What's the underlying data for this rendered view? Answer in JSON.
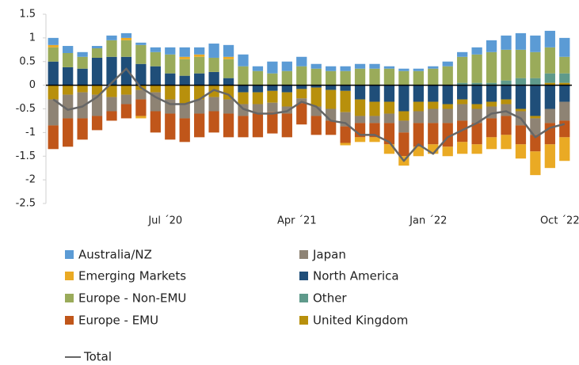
{
  "chart_data": {
    "type": "bar",
    "categories": [
      null,
      null,
      null,
      null,
      null,
      null,
      null,
      null,
      "Jul ´20",
      null,
      null,
      null,
      null,
      null,
      null,
      null,
      null,
      "Apr ´21",
      null,
      null,
      null,
      null,
      null,
      null,
      null,
      null,
      "Jan ´22",
      null,
      null,
      null,
      null,
      null,
      null,
      null,
      null,
      "Oct ´22"
    ],
    "series": [
      {
        "name": "Australia/NZ",
        "color": "#5b9bd5",
        "values": [
          0.15,
          0.15,
          0.1,
          0.05,
          0.1,
          0.1,
          0.05,
          0.1,
          0.15,
          0.2,
          0.15,
          0.3,
          0.25,
          0.25,
          0.1,
          0.25,
          0.2,
          0.2,
          0.1,
          0.1,
          0.1,
          0.1,
          0.1,
          0.05,
          0.05,
          0.05,
          0.05,
          0.1,
          0.1,
          0.15,
          0.25,
          0.3,
          0.35,
          0.35,
          0.35,
          0.4
        ]
      },
      {
        "name": "Emerging Markets",
        "color": "#eaaa24",
        "values": [
          0.05,
          0,
          0,
          0,
          0,
          0.05,
          -0.05,
          0,
          0,
          0.05,
          0.05,
          0,
          0.05,
          0,
          0,
          0,
          0,
          0,
          0,
          0,
          -0.05,
          -0.1,
          -0.1,
          -0.2,
          -0.2,
          -0.2,
          -0.2,
          -0.2,
          -0.25,
          -0.2,
          -0.25,
          -0.3,
          -0.3,
          -0.5,
          -0.5,
          -0.5
        ]
      },
      {
        "name": "Europe - Non-EMU",
        "color": "#9aab5a",
        "values": [
          0.3,
          0.3,
          0.25,
          0.2,
          0.35,
          0.35,
          0.4,
          0.3,
          0.4,
          0.35,
          0.35,
          0.3,
          0.4,
          0.4,
          0.3,
          0.25,
          0.3,
          0.4,
          0.35,
          0.3,
          0.3,
          0.35,
          0.35,
          0.35,
          0.3,
          0.3,
          0.35,
          0.4,
          0.55,
          0.6,
          0.65,
          0.65,
          0.6,
          0.55,
          0.55,
          0.35
        ]
      },
      {
        "name": "Europe - EMU",
        "color": "#c0561a",
        "values": [
          -0.5,
          -0.6,
          -0.45,
          -0.3,
          -0.2,
          -0.3,
          -0.35,
          -0.45,
          -0.55,
          -0.5,
          -0.5,
          -0.45,
          -0.5,
          -0.45,
          -0.5,
          -0.45,
          -0.5,
          -0.45,
          -0.4,
          -0.3,
          -0.35,
          -0.3,
          -0.3,
          -0.45,
          -0.5,
          -0.5,
          -0.45,
          -0.5,
          -0.45,
          -0.45,
          -0.4,
          -0.4,
          -0.4,
          -0.35,
          -0.45,
          -0.35
        ]
      },
      {
        "name": "Japan",
        "color": "#8e8374",
        "values": [
          -0.55,
          -0.5,
          -0.55,
          -0.45,
          -0.3,
          -0.2,
          -0.2,
          -0.4,
          -0.3,
          -0.3,
          -0.3,
          -0.3,
          -0.3,
          -0.25,
          -0.2,
          -0.2,
          -0.15,
          -0.1,
          -0.2,
          -0.25,
          -0.3,
          -0.15,
          -0.15,
          -0.2,
          -0.25,
          -0.25,
          -0.3,
          -0.3,
          -0.35,
          -0.3,
          -0.25,
          -0.25,
          -0.3,
          -0.35,
          -0.3,
          -0.4
        ]
      },
      {
        "name": "North America",
        "color": "#1f4e79",
        "values": [
          0.5,
          0.38,
          0.35,
          0.58,
          0.6,
          0.6,
          0.45,
          0.4,
          0.25,
          0.2,
          0.25,
          0.28,
          0.15,
          -0.15,
          -0.15,
          -0.12,
          -0.15,
          -0.08,
          -0.05,
          -0.1,
          -0.12,
          -0.3,
          -0.35,
          -0.35,
          -0.55,
          -0.35,
          -0.35,
          -0.4,
          -0.3,
          -0.4,
          -0.35,
          -0.3,
          -0.5,
          -0.65,
          -0.5,
          -0.35
        ]
      },
      {
        "name": "Other",
        "color": "#5f9a8b",
        "values": [
          0,
          0,
          0,
          0,
          0,
          0,
          0,
          0,
          0,
          0,
          0,
          0,
          0,
          0,
          0,
          0,
          0,
          0,
          0,
          0,
          0,
          0,
          0,
          0,
          0,
          0,
          0,
          0,
          0.05,
          0.05,
          0.05,
          0.1,
          0.15,
          0.15,
          0.2,
          0.2
        ]
      },
      {
        "name": "United Kingdom",
        "color": "#b8900c",
        "values": [
          -0.3,
          -0.2,
          -0.15,
          -0.2,
          -0.25,
          -0.2,
          -0.1,
          -0.15,
          -0.3,
          -0.4,
          -0.3,
          -0.25,
          -0.3,
          -0.25,
          -0.25,
          -0.25,
          -0.3,
          -0.2,
          -0.4,
          -0.4,
          -0.45,
          -0.35,
          -0.3,
          -0.25,
          -0.2,
          -0.2,
          -0.15,
          -0.1,
          -0.1,
          -0.1,
          -0.1,
          -0.1,
          -0.05,
          -0.05,
          0.05,
          0.05
        ]
      },
      {
        "name": "Total",
        "type": "line",
        "color": "#666666",
        "values": [
          -0.3,
          -0.52,
          -0.45,
          -0.25,
          0.05,
          0.35,
          -0.05,
          -0.25,
          -0.4,
          -0.4,
          -0.3,
          -0.1,
          -0.2,
          -0.5,
          -0.6,
          -0.6,
          -0.55,
          -0.35,
          -0.45,
          -0.75,
          -0.8,
          -1.05,
          -1.05,
          -1.2,
          -1.6,
          -1.25,
          -1.45,
          -1.1,
          -0.95,
          -0.8,
          -0.6,
          -0.55,
          -0.7,
          -1.1,
          -0.9,
          -0.82
        ]
      }
    ],
    "ylim": [
      -2.5,
      1.5
    ],
    "yticks": [
      1.5,
      1,
      0.5,
      0,
      -0.5,
      -1,
      -1.5,
      -2,
      -2.5
    ],
    "grid": false
  }
}
